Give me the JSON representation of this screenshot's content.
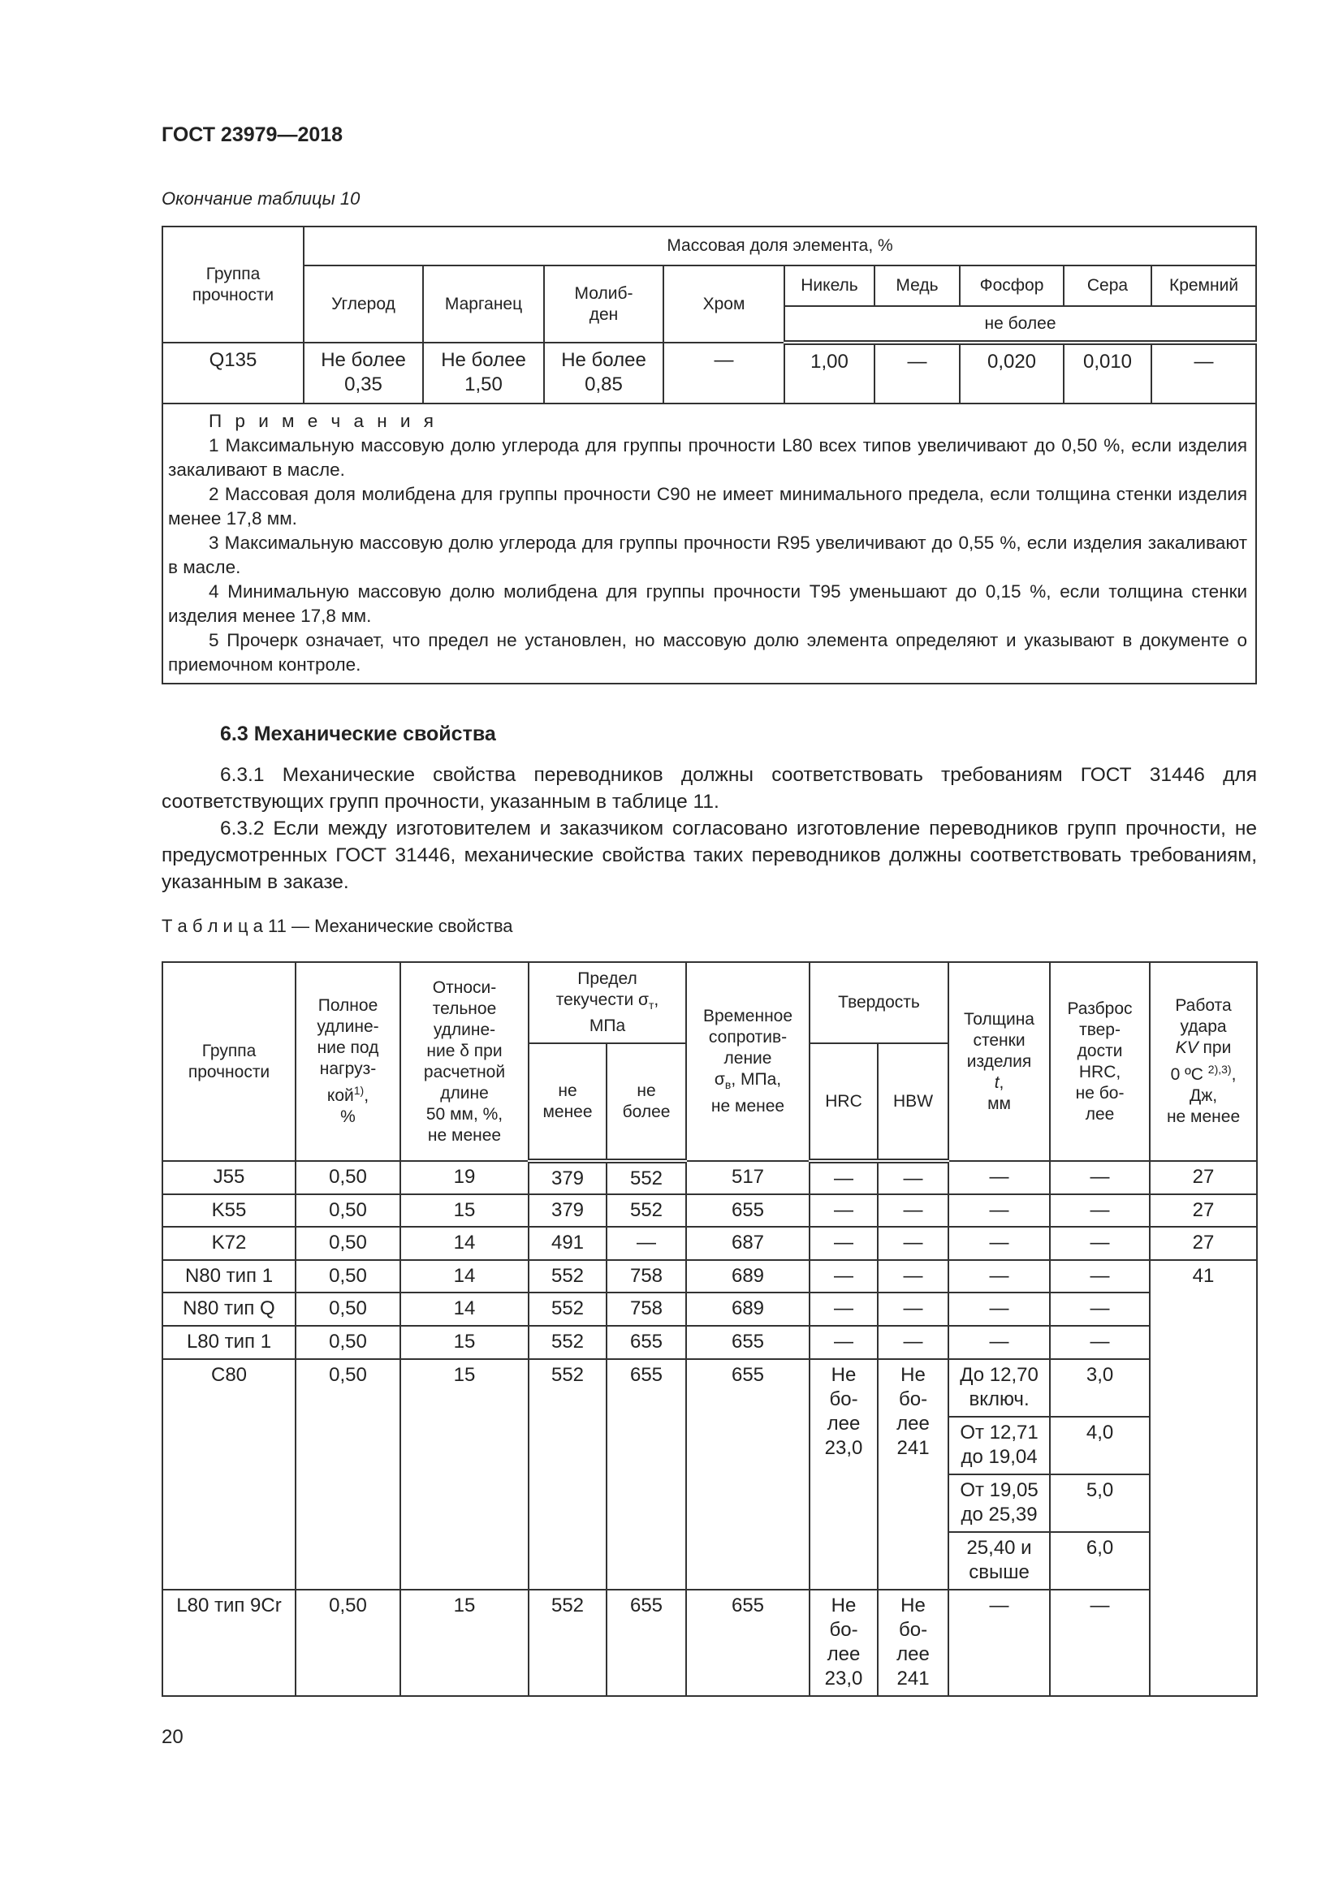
{
  "header": {
    "doc_id": "ГОСТ 23979—2018",
    "continuation": "Окончание таблицы 10"
  },
  "table10": {
    "group_header": "Группа\nпрочности",
    "span_header": "Массовая доля элемента, %",
    "columns": [
      "Углерод",
      "Марганец",
      "Молиб-\nден",
      "Хром",
      "Никель",
      "Медь",
      "Фосфор",
      "Сера",
      "Кремний"
    ],
    "sub_header": "не более",
    "row": [
      "Q135",
      "Не более\n0,35",
      "Не более\n1,50",
      "Не более\n0,85",
      "—",
      "1,00",
      "—",
      "0,020",
      "0,010",
      "—"
    ],
    "notes_title": "П р и м е ч а н и я",
    "notes": [
      "1 Максимальную массовую долю углерода для группы прочности L80 всех типов увеличивают до 0,50 %, если изделия закаливают в масле.",
      "2 Массовая доля молибдена для группы прочности C90 не имеет минимального предела, если толщина стенки изделия менее 17,8 мм.",
      "3 Максимальную массовую долю углерода для группы прочности R95 увеличивают до 0,55 %, если изделия закаливают в масле.",
      "4 Минимальную массовую долю молибдена для группы прочности T95 уменьшают до 0,15 %, если толщина стенки изделия менее 17,8 мм.",
      "5 Прочерк означает, что предел не установлен, но массовую долю элемента определяют и указывают в документе о приемочном контроле."
    ]
  },
  "section": {
    "title": "6.3 Механические свойства",
    "p1": "6.3.1 Механические свойства переводников должны соответствовать требованиям ГОСТ 31446 для соответствующих групп прочности, указанным в таблице 11.",
    "p2": "6.3.2 Если между изготовителем и заказчиком согласовано изготовление переводников групп прочности, не предусмотренных ГОСТ 31446, механические свойства таких переводников должны соответствовать требованиям, указанным в заказе."
  },
  "table11": {
    "caption_word": "Т а б л и ц а",
    "caption_rest": " 11 — Механические свойства",
    "h_group": "Группа\nпрочности",
    "h_total_a": "Полное\nудлине-\nние под\nнагруз-\nкой",
    "h_total_sup": "1)",
    "h_total_b": ",\n%",
    "h_rel": "Относи-\nтельное\nудлине-\nние δ при\nрасчетной\nдлине\n50 мм, %,\nне менее",
    "h_yield_a": "Предел\nтекучести σ",
    "h_yield_sub": "т",
    "h_yield_b": ",\nМПа",
    "h_min": "не\nменее",
    "h_max": "не\nболее",
    "h_tensile_a": "Временное\nсопротив-\nление\nσ",
    "h_tensile_sub": "в",
    "h_tensile_b": ", МПа,\nне менее",
    "h_hard": "Твердость",
    "h_hrc": "HRC",
    "h_hbw": "HBW",
    "h_wall_a": "Толщина\nстенки\nизделия\n",
    "h_wall_t": "t",
    "h_wall_b": ",\nмм",
    "h_spread": "Разброс\nтвер-\nдости\nHRC,\nне бо-\nлее",
    "h_kv_a": "Работа\nудара\n",
    "h_kv_i": "KV",
    "h_kv_b": " при\n0 ºC ",
    "h_kv_sup": "2),3)",
    "h_kv_c": ",\nДж,\nне менее",
    "rows": [
      [
        "J55",
        "0,50",
        "19",
        "379",
        "552",
        "517",
        "—",
        "—",
        "—",
        "—",
        "27"
      ],
      [
        "K55",
        "0,50",
        "15",
        "379",
        "552",
        "655",
        "—",
        "—",
        "—",
        "—",
        "27"
      ],
      [
        "K72",
        "0,50",
        "14",
        "491",
        "—",
        "687",
        "—",
        "—",
        "—",
        "—",
        "27"
      ],
      [
        "N80 тип 1",
        "0,50",
        "14",
        "552",
        "758",
        "689",
        "—",
        "—",
        "—",
        "—",
        "41"
      ],
      [
        "N80 тип Q",
        "0,50",
        "14",
        "552",
        "758",
        "689",
        "—",
        "—",
        "—",
        "—"
      ],
      [
        "L80 тип 1",
        "0,50",
        "15",
        "552",
        "655",
        "655",
        "—",
        "—",
        "—",
        "—"
      ]
    ],
    "c80": {
      "cells": [
        "C80",
        "0,50",
        "15",
        "552",
        "655",
        "655",
        "Не\nбо-\nлее\n23,0",
        "Не\nбо-\nлее\n241"
      ],
      "sub": [
        [
          "До 12,70\nвключ.",
          "3,0"
        ],
        [
          "От 12,71\nдо 19,04",
          "4,0"
        ],
        [
          "От 19,05\nдо 25,39",
          "5,0"
        ],
        [
          "25,40 и\nсвыше",
          "6,0"
        ]
      ]
    },
    "l80cr": [
      "L80 тип 9Cr",
      "0,50",
      "15",
      "552",
      "655",
      "655",
      "Не\nбо-\nлее\n23,0",
      "Не\nбо-\nлее\n241",
      "—",
      "—"
    ]
  },
  "page_number": "20"
}
